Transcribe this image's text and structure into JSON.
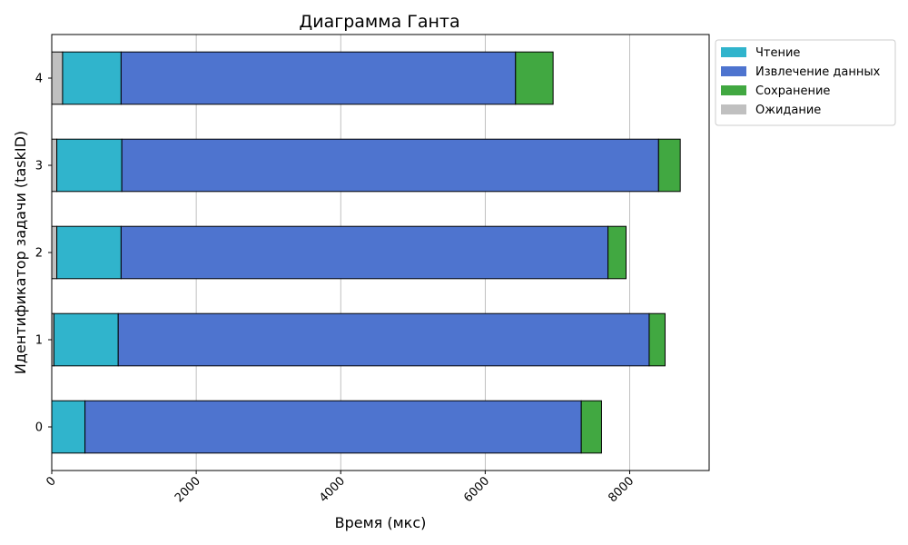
{
  "chart_data": {
    "type": "bar",
    "orientation": "horizontal",
    "stacked": true,
    "title": "Диаграмма Ганта",
    "xlabel": "Время (мкс)",
    "ylabel": "Идентификатор задачи (taskID)",
    "xlim": [
      0,
      9100
    ],
    "x_ticks": [
      0,
      2000,
      4000,
      6000,
      8000
    ],
    "x_tick_rotation": 45,
    "categories": [
      "0",
      "1",
      "2",
      "3",
      "4"
    ],
    "grid": "vertical",
    "legend_position": "outside-top-right",
    "segments": [
      {
        "name": "Ожидание",
        "color": "#c0c0c0",
        "starts": [
          0,
          0,
          0,
          0,
          0
        ],
        "ends": [
          0,
          30,
          70,
          70,
          150
        ]
      },
      {
        "name": "Чтение",
        "color": "#30b4cc",
        "starts": [
          0,
          30,
          70,
          70,
          150
        ],
        "ends": [
          460,
          920,
          960,
          970,
          960
        ]
      },
      {
        "name": "Извлечение данных",
        "color": "#4e74cf",
        "starts": [
          460,
          920,
          960,
          970,
          960
        ],
        "ends": [
          7330,
          8270,
          7700,
          8400,
          6420
        ]
      },
      {
        "name": "Сохранение",
        "color": "#41a841",
        "starts": [
          7330,
          8270,
          7700,
          8400,
          6420
        ],
        "ends": [
          7610,
          8490,
          7950,
          8700,
          6940
        ]
      }
    ],
    "legend": [
      "Чтение",
      "Извлечение данных",
      "Сохранение",
      "Ожидание"
    ]
  }
}
